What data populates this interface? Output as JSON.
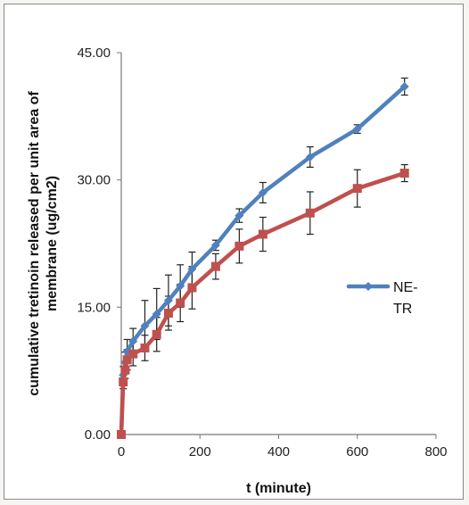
{
  "chart_data": {
    "type": "line",
    "xlabel": "t (minute)",
    "ylabel": "cumulative tretinoin released per unit area of membrane (ug/cm2)",
    "ylabel_lines": [
      "cumulative tretinoin released per unit area of",
      "membrane (ug/cm2)"
    ],
    "xlim": [
      0,
      800
    ],
    "ylim": [
      0,
      45
    ],
    "x_ticks": [
      "0",
      "200",
      "400",
      "600",
      "800"
    ],
    "y_ticks": [
      "0.00",
      "15.00",
      "30.00",
      "45.00"
    ],
    "grid": false,
    "legend_position": "right",
    "legend_lines": [
      "NE-",
      "TR"
    ],
    "series": [
      {
        "name": "NE-TR",
        "color": "#4f81bd",
        "marker": "diamond",
        "x": [
          0,
          5,
          10,
          15,
          30,
          60,
          90,
          120,
          150,
          180,
          240,
          300,
          360,
          480,
          600,
          720
        ],
        "y": [
          0,
          7.0,
          8.5,
          9.8,
          11.0,
          12.8,
          14.2,
          15.8,
          17.5,
          19.5,
          22.3,
          25.8,
          28.5,
          32.7,
          36.0,
          41.0
        ],
        "err": [
          0,
          1.0,
          1.2,
          1.4,
          1.5,
          3.0,
          3.0,
          3.0,
          2.5,
          2.0,
          0.6,
          0.8,
          1.2,
          1.2,
          0.5,
          1.0
        ]
      },
      {
        "name": "",
        "color": "#c0504d",
        "marker": "square",
        "x": [
          0,
          5,
          10,
          15,
          30,
          60,
          90,
          120,
          150,
          180,
          240,
          300,
          360,
          480,
          600,
          720
        ],
        "y": [
          0,
          6.2,
          7.6,
          8.8,
          9.5,
          10.2,
          11.8,
          14.3,
          15.5,
          17.3,
          19.8,
          22.2,
          23.6,
          26.1,
          29.0,
          30.8
        ],
        "err": [
          0,
          0.8,
          1.0,
          1.2,
          1.4,
          1.5,
          2.0,
          2.0,
          2.2,
          2.5,
          1.5,
          2.0,
          2.0,
          2.5,
          2.2,
          1.0
        ]
      }
    ]
  }
}
